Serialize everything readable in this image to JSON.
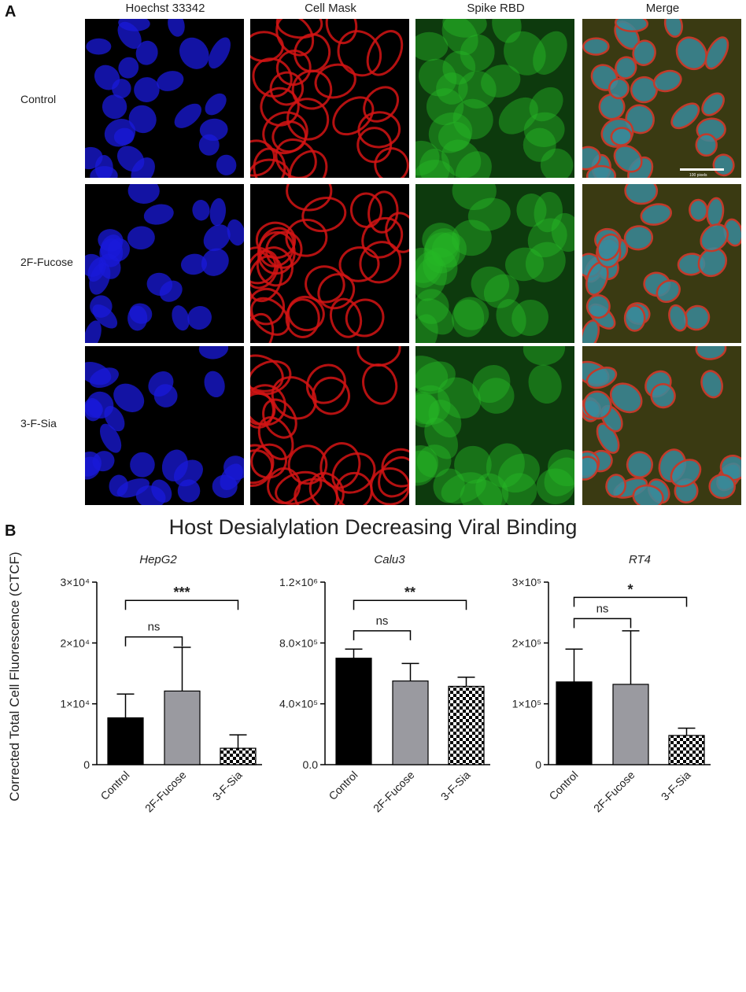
{
  "panel_a": {
    "letter": "A",
    "columns": [
      "Hoechst 33342",
      "Cell Mask",
      "Spike RBD",
      "Merge"
    ],
    "rows": [
      "Control",
      "2F-Fucose",
      "3-F-Sia"
    ],
    "channel_colors": {
      "hoechst": "#1a1ad9",
      "cellmask": "#d41414",
      "spike": "#26b826"
    },
    "scale_bar_text": "100 pixels"
  },
  "panel_b": {
    "letter": "B",
    "title": "Host Desialylation Decreasing Viral Binding",
    "ylabel": "Corrected Total Cell Fluorescence (CTCF)"
  },
  "chart_data": [
    {
      "type": "bar",
      "title": "HepG2",
      "categories": [
        "Control",
        "2F-Fucose",
        "3-F-Sia"
      ],
      "values": [
        7700,
        12100,
        2700
      ],
      "error_upper": [
        11600,
        19300,
        4900
      ],
      "ylim": [
        0,
        30000
      ],
      "ticks": [
        {
          "v": 0,
          "label": "0"
        },
        {
          "v": 10000,
          "label": "1×10⁴"
        },
        {
          "v": 20000,
          "label": "2×10⁴"
        },
        {
          "v": 30000,
          "label": "3×10⁴"
        }
      ],
      "bar_colors": [
        "#000000",
        "#9a9aa0",
        "checker"
      ],
      "significance": [
        {
          "from": 0,
          "to": 1,
          "y": 21000,
          "label": "ns"
        },
        {
          "from": 0,
          "to": 2,
          "y": 27000,
          "label": "***"
        }
      ]
    },
    {
      "type": "bar",
      "title": "Calu3",
      "categories": [
        "Control",
        "2F-Fucose",
        "3-F-Sia"
      ],
      "values": [
        700000,
        550000,
        515000
      ],
      "error_upper": [
        760000,
        665000,
        575000
      ],
      "ylim": [
        0,
        1200000
      ],
      "ticks": [
        {
          "v": 0,
          "label": "0.0"
        },
        {
          "v": 400000,
          "label": "4.0×10⁵"
        },
        {
          "v": 800000,
          "label": "8.0×10⁵"
        },
        {
          "v": 1200000,
          "label": "1.2×10⁶"
        }
      ],
      "bar_colors": [
        "#000000",
        "#9a9aa0",
        "checker"
      ],
      "significance": [
        {
          "from": 0,
          "to": 1,
          "y": 880000,
          "label": "ns"
        },
        {
          "from": 0,
          "to": 2,
          "y": 1080000,
          "label": "**"
        }
      ]
    },
    {
      "type": "bar",
      "title": "RT4",
      "categories": [
        "Control",
        "2F-Fucose",
        "3-F-Sia"
      ],
      "values": [
        136000,
        132000,
        48000
      ],
      "error_upper": [
        190000,
        220000,
        60000
      ],
      "ylim": [
        0,
        300000
      ],
      "ticks": [
        {
          "v": 0,
          "label": "0"
        },
        {
          "v": 100000,
          "label": "1×10⁵"
        },
        {
          "v": 200000,
          "label": "2×10⁵"
        },
        {
          "v": 300000,
          "label": "3×10⁵"
        }
      ],
      "bar_colors": [
        "#000000",
        "#9a9aa0",
        "checker"
      ],
      "significance": [
        {
          "from": 0,
          "to": 1,
          "y": 240000,
          "label": "ns"
        },
        {
          "from": 0,
          "to": 2,
          "y": 275000,
          "label": "*"
        }
      ]
    }
  ]
}
